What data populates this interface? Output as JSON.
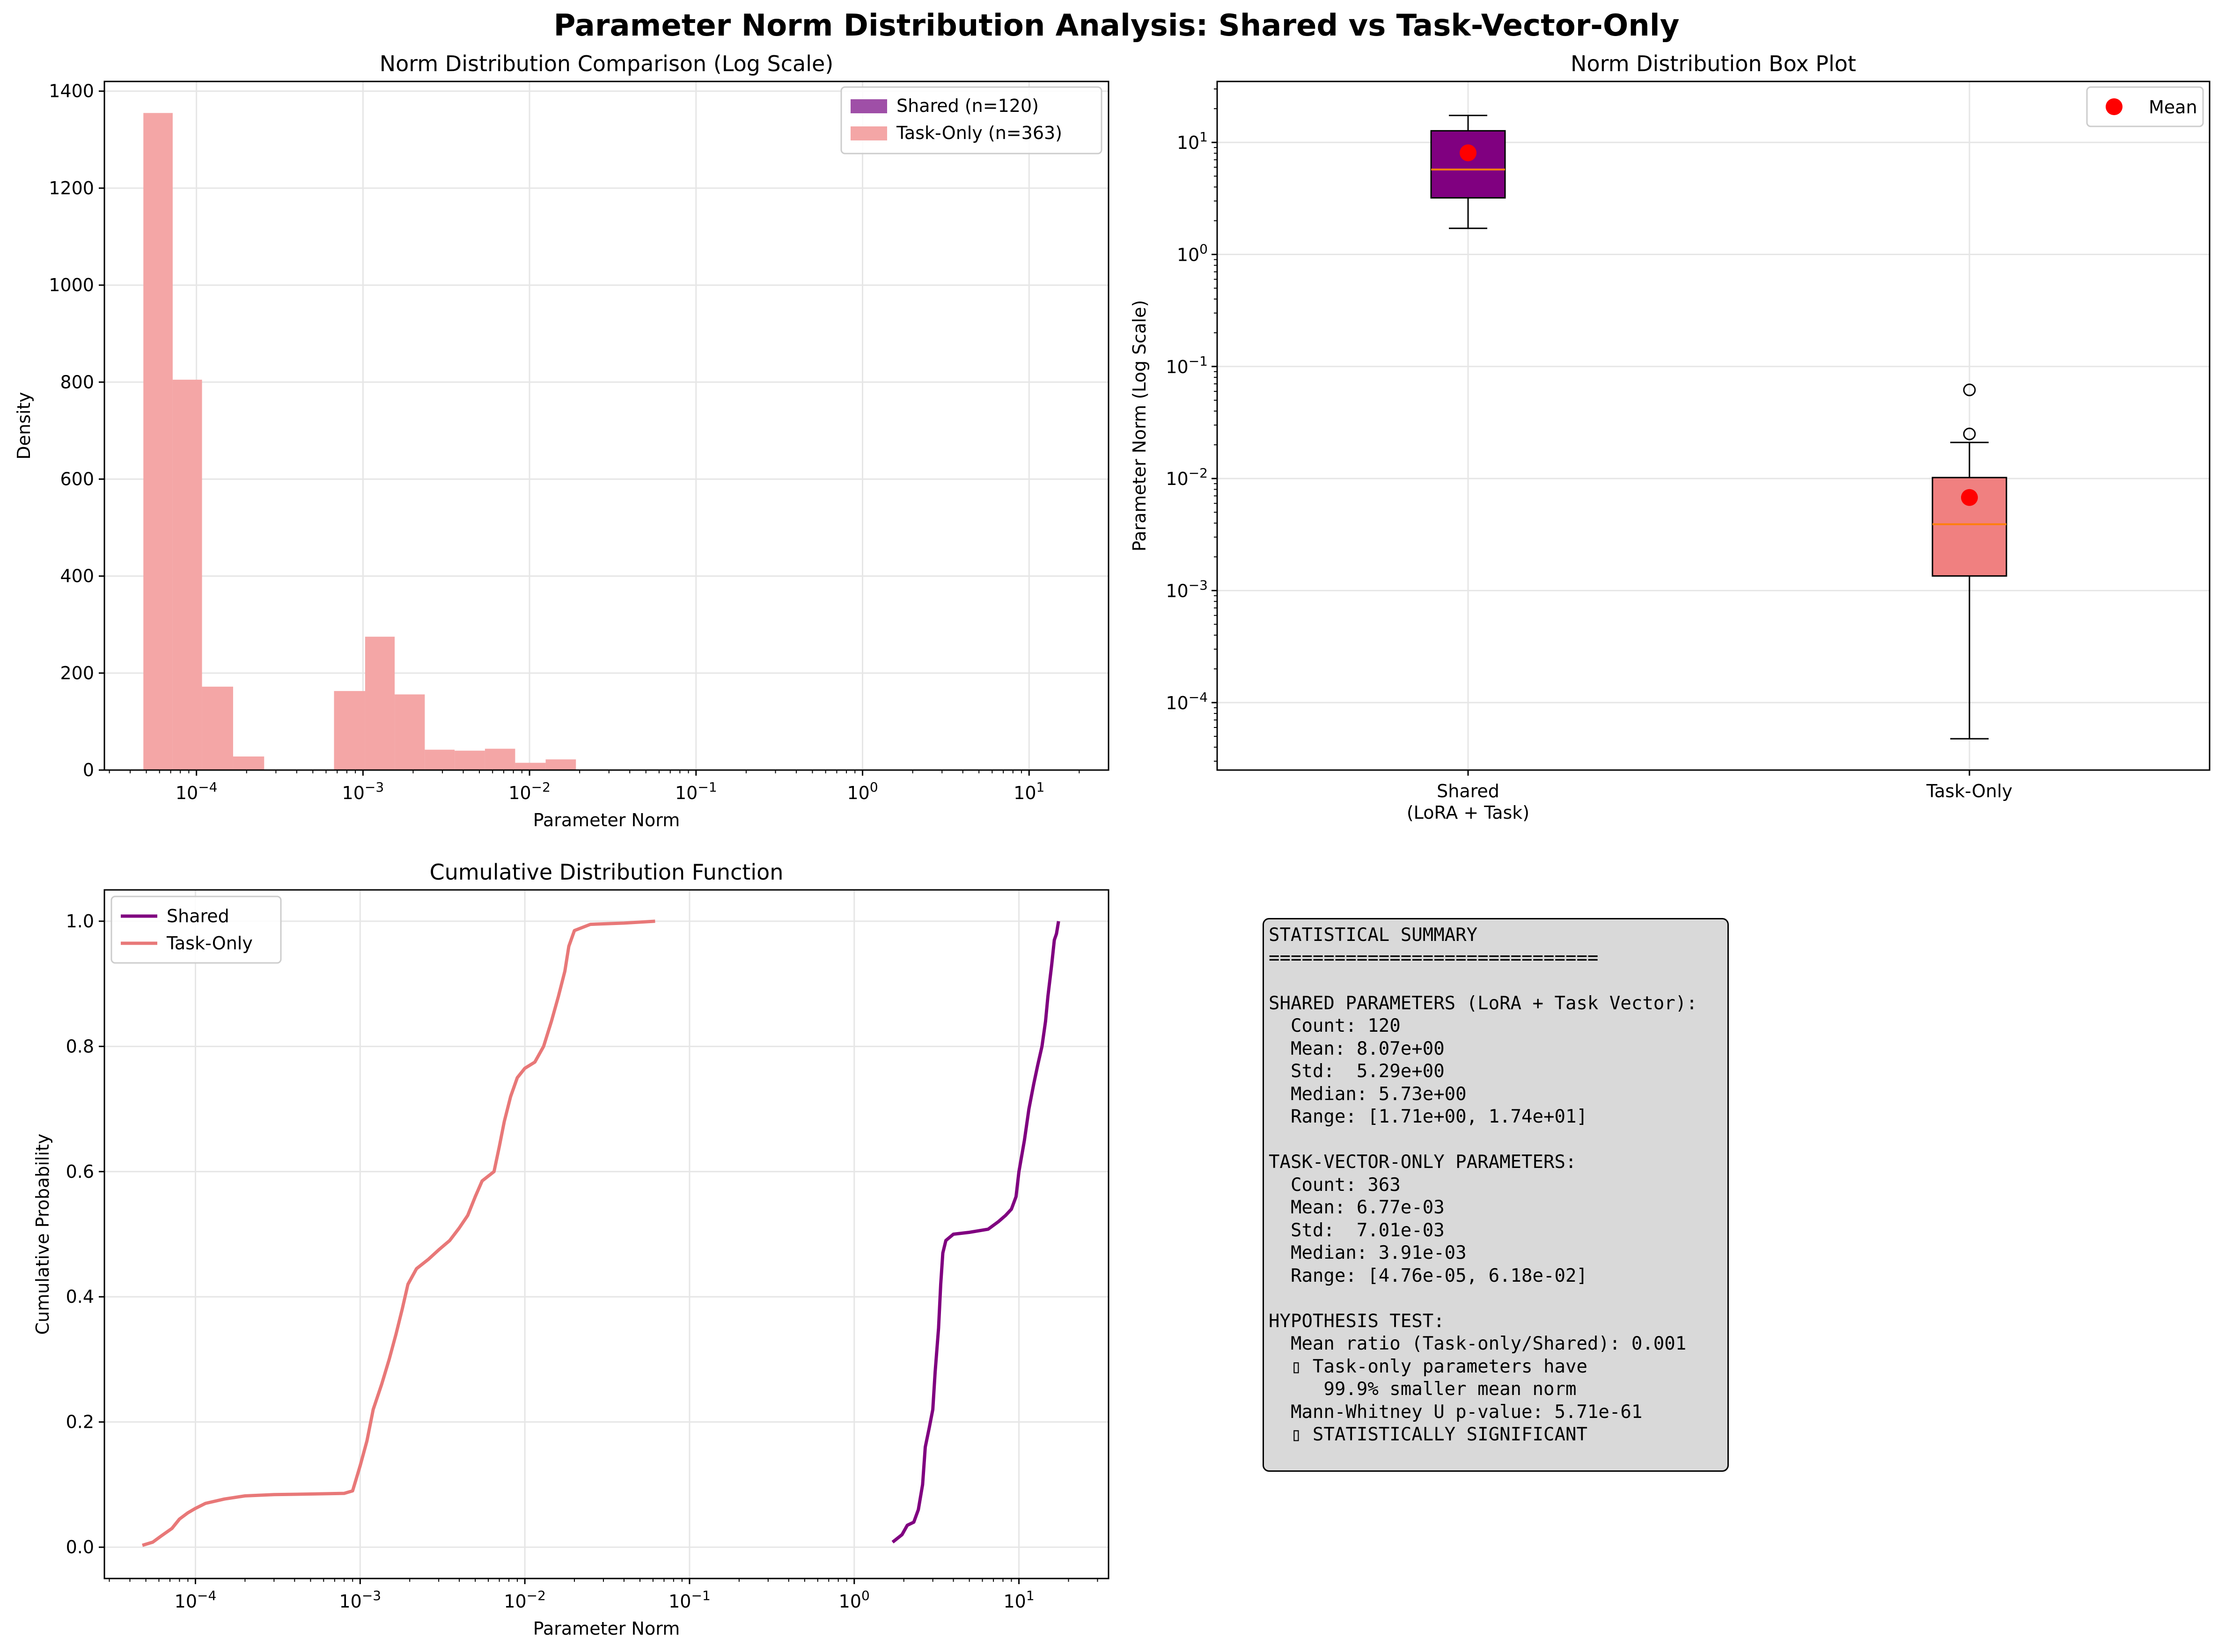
{
  "title": "Parameter Norm Distribution Analysis: Shared vs Task-Vector-Only",
  "colors": {
    "shared": "#800080",
    "task_only": "#f08080",
    "hist_shared": "#9f4fa7",
    "hist_task": "#f4a6a6",
    "median": "#ff7f0e",
    "mean": "#ff0000"
  },
  "chart_data": [
    {
      "type": "bar",
      "title": "Norm Distribution Comparison (Log Scale)",
      "xlabel": "Parameter Norm",
      "ylabel": "Density",
      "xscale": "log",
      "xlim": [
        2.8e-05,
        30
      ],
      "ylim": [
        0,
        1420
      ],
      "yticks": [
        0,
        200,
        400,
        600,
        800,
        1000,
        1200,
        1400
      ],
      "xticks": [
        {
          "value": 0.0001,
          "base": "10",
          "exp": "−4"
        },
        {
          "value": 0.001,
          "base": "10",
          "exp": "−3"
        },
        {
          "value": 0.01,
          "base": "10",
          "exp": "−2"
        },
        {
          "value": 0.1,
          "base": "10",
          "exp": "−1"
        },
        {
          "value": 1,
          "base": "10",
          "exp": "0"
        },
        {
          "value": 10,
          "base": "10",
          "exp": "1"
        }
      ],
      "grid": true,
      "legend_position": "top-right",
      "series": [
        {
          "name": "Shared (n=120)",
          "color": "#9f4fa7",
          "bins": []
        },
        {
          "name": "Task-Only (n=363)",
          "color": "#f4a6a6",
          "bins": [
            [
              4.8e-05,
              7.2e-05,
              1355
            ],
            [
              7.2e-05,
              0.000108,
              805
            ],
            [
              0.000108,
              0.000166,
              172
            ],
            [
              0.000166,
              0.000255,
              28
            ],
            [
              0.00067,
              0.00103,
              163
            ],
            [
              0.00103,
              0.00155,
              275
            ],
            [
              0.00155,
              0.00235,
              156
            ],
            [
              0.00235,
              0.00355,
              42
            ],
            [
              0.00355,
              0.0054,
              40
            ],
            [
              0.0054,
              0.0082,
              44
            ],
            [
              0.0082,
              0.0125,
              15
            ],
            [
              0.0125,
              0.019,
              22
            ]
          ]
        }
      ]
    },
    {
      "type": "box",
      "title": "Norm Distribution Box Plot",
      "ylabel": "Parameter Norm (Log Scale)",
      "yscale": "log",
      "ylim": [
        2.5e-05,
        35
      ],
      "yticks": [
        {
          "value": 0.0001,
          "base": "10",
          "exp": "−4"
        },
        {
          "value": 0.001,
          "base": "10",
          "exp": "−3"
        },
        {
          "value": 0.01,
          "base": "10",
          "exp": "−2"
        },
        {
          "value": 0.1,
          "base": "10",
          "exp": "−1"
        },
        {
          "value": 1,
          "base": "10",
          "exp": "0"
        },
        {
          "value": 10,
          "base": "10",
          "exp": "1"
        }
      ],
      "categories": [
        [
          "Shared",
          "(LoRA + Task)"
        ],
        [
          "Task-Only"
        ]
      ],
      "grid": true,
      "legend": [
        {
          "name": "Mean",
          "color": "#ff0000"
        }
      ],
      "legend_position": "top-right",
      "boxes": [
        {
          "color": "#800080",
          "q1": 3.2,
          "median": 5.73,
          "q3": 12.7,
          "whisker_low": 1.71,
          "whisker_high": 17.4,
          "mean": 8.07,
          "outliers": []
        },
        {
          "color": "#f08080",
          "q1": 0.00135,
          "median": 0.00391,
          "q3": 0.0102,
          "whisker_low": 4.76e-05,
          "whisker_high": 0.021,
          "mean": 0.00677,
          "outliers": [
            0.0618,
            0.025
          ]
        }
      ]
    },
    {
      "type": "line",
      "title": "Cumulative Distribution Function",
      "xlabel": "Parameter Norm",
      "ylabel": "Cumulative Probability",
      "xscale": "log",
      "xlim": [
        2.8e-05,
        35
      ],
      "ylim": [
        -0.05,
        1.05
      ],
      "yticks": [
        0.0,
        0.2,
        0.4,
        0.6,
        0.8,
        1.0
      ],
      "ytick_labels": [
        "0.0",
        "0.2",
        "0.4",
        "0.6",
        "0.8",
        "1.0"
      ],
      "xticks": [
        {
          "value": 0.0001,
          "base": "10",
          "exp": "−4"
        },
        {
          "value": 0.001,
          "base": "10",
          "exp": "−3"
        },
        {
          "value": 0.01,
          "base": "10",
          "exp": "−2"
        },
        {
          "value": 0.1,
          "base": "10",
          "exp": "−1"
        },
        {
          "value": 1,
          "base": "10",
          "exp": "0"
        },
        {
          "value": 10,
          "base": "10",
          "exp": "1"
        }
      ],
      "grid": true,
      "legend_position": "top-left",
      "series": [
        {
          "name": "Shared",
          "color": "#800080",
          "points": [
            [
              1.71,
              0.008
            ],
            [
              1.95,
              0.02
            ],
            [
              2.1,
              0.035
            ],
            [
              2.3,
              0.04
            ],
            [
              2.45,
              0.06
            ],
            [
              2.6,
              0.1
            ],
            [
              2.7,
              0.16
            ],
            [
              2.85,
              0.19
            ],
            [
              3.0,
              0.22
            ],
            [
              3.1,
              0.28
            ],
            [
              3.25,
              0.35
            ],
            [
              3.35,
              0.42
            ],
            [
              3.45,
              0.47
            ],
            [
              3.6,
              0.49
            ],
            [
              4.0,
              0.5
            ],
            [
              5.0,
              0.503
            ],
            [
              6.5,
              0.508
            ],
            [
              7.5,
              0.52
            ],
            [
              8.3,
              0.53
            ],
            [
              9.0,
              0.54
            ],
            [
              9.6,
              0.56
            ],
            [
              10.0,
              0.6
            ],
            [
              10.8,
              0.65
            ],
            [
              11.5,
              0.7
            ],
            [
              12.3,
              0.74
            ],
            [
              13.0,
              0.77
            ],
            [
              13.8,
              0.8
            ],
            [
              14.5,
              0.84
            ],
            [
              15.0,
              0.88
            ],
            [
              15.8,
              0.93
            ],
            [
              16.4,
              0.97
            ],
            [
              16.9,
              0.98
            ],
            [
              17.4,
              1.0
            ]
          ]
        },
        {
          "name": "Task-Only",
          "color": "#e87878",
          "points": [
            [
              4.76e-05,
              0.003
            ],
            [
              5.5e-05,
              0.008
            ],
            [
              6.2e-05,
              0.018
            ],
            [
              7.2e-05,
              0.03
            ],
            [
              8e-05,
              0.045
            ],
            [
              9e-05,
              0.055
            ],
            [
              0.0001,
              0.062
            ],
            [
              0.000115,
              0.07
            ],
            [
              0.00015,
              0.077
            ],
            [
              0.0002,
              0.082
            ],
            [
              0.0003,
              0.084
            ],
            [
              0.0005,
              0.085
            ],
            [
              0.0008,
              0.086
            ],
            [
              0.0009,
              0.09
            ],
            [
              0.001,
              0.13
            ],
            [
              0.0011,
              0.17
            ],
            [
              0.0012,
              0.22
            ],
            [
              0.00135,
              0.26
            ],
            [
              0.0015,
              0.3
            ],
            [
              0.00165,
              0.34
            ],
            [
              0.0018,
              0.38
            ],
            [
              0.00195,
              0.42
            ],
            [
              0.0022,
              0.445
            ],
            [
              0.0026,
              0.46
            ],
            [
              0.003,
              0.475
            ],
            [
              0.0035,
              0.49
            ],
            [
              0.004,
              0.51
            ],
            [
              0.0045,
              0.53
            ],
            [
              0.005,
              0.56
            ],
            [
              0.0055,
              0.585
            ],
            [
              0.0065,
              0.6
            ],
            [
              0.007,
              0.64
            ],
            [
              0.0075,
              0.68
            ],
            [
              0.0082,
              0.72
            ],
            [
              0.009,
              0.75
            ],
            [
              0.01,
              0.765
            ],
            [
              0.0115,
              0.775
            ],
            [
              0.013,
              0.8
            ],
            [
              0.0145,
              0.84
            ],
            [
              0.016,
              0.88
            ],
            [
              0.0175,
              0.92
            ],
            [
              0.0185,
              0.96
            ],
            [
              0.02,
              0.985
            ],
            [
              0.025,
              0.995
            ],
            [
              0.04,
              0.997
            ],
            [
              0.0618,
              1.0
            ]
          ]
        }
      ]
    }
  ],
  "summary_text": "STATISTICAL SUMMARY\n==============================\n\nSHARED PARAMETERS (LoRA + Task Vector):\n  Count: 120\n  Mean: 8.07e+00\n  Std:  5.29e+00\n  Median: 5.73e+00\n  Range: [1.71e+00, 1.74e+01]\n\nTASK-VECTOR-ONLY PARAMETERS:\n  Count: 363\n  Mean: 6.77e-03\n  Std:  7.01e-03\n  Median: 3.91e-03\n  Range: [4.76e-05, 6.18e-02]\n\nHYPOTHESIS TEST:\n  Mean ratio (Task-only/Shared): 0.001\n  ▯ Task-only parameters have\n     99.9% smaller mean norm\n  Mann-Whitney U p-value: 5.71e-61\n  ▯ STATISTICALLY SIGNIFICANT"
}
